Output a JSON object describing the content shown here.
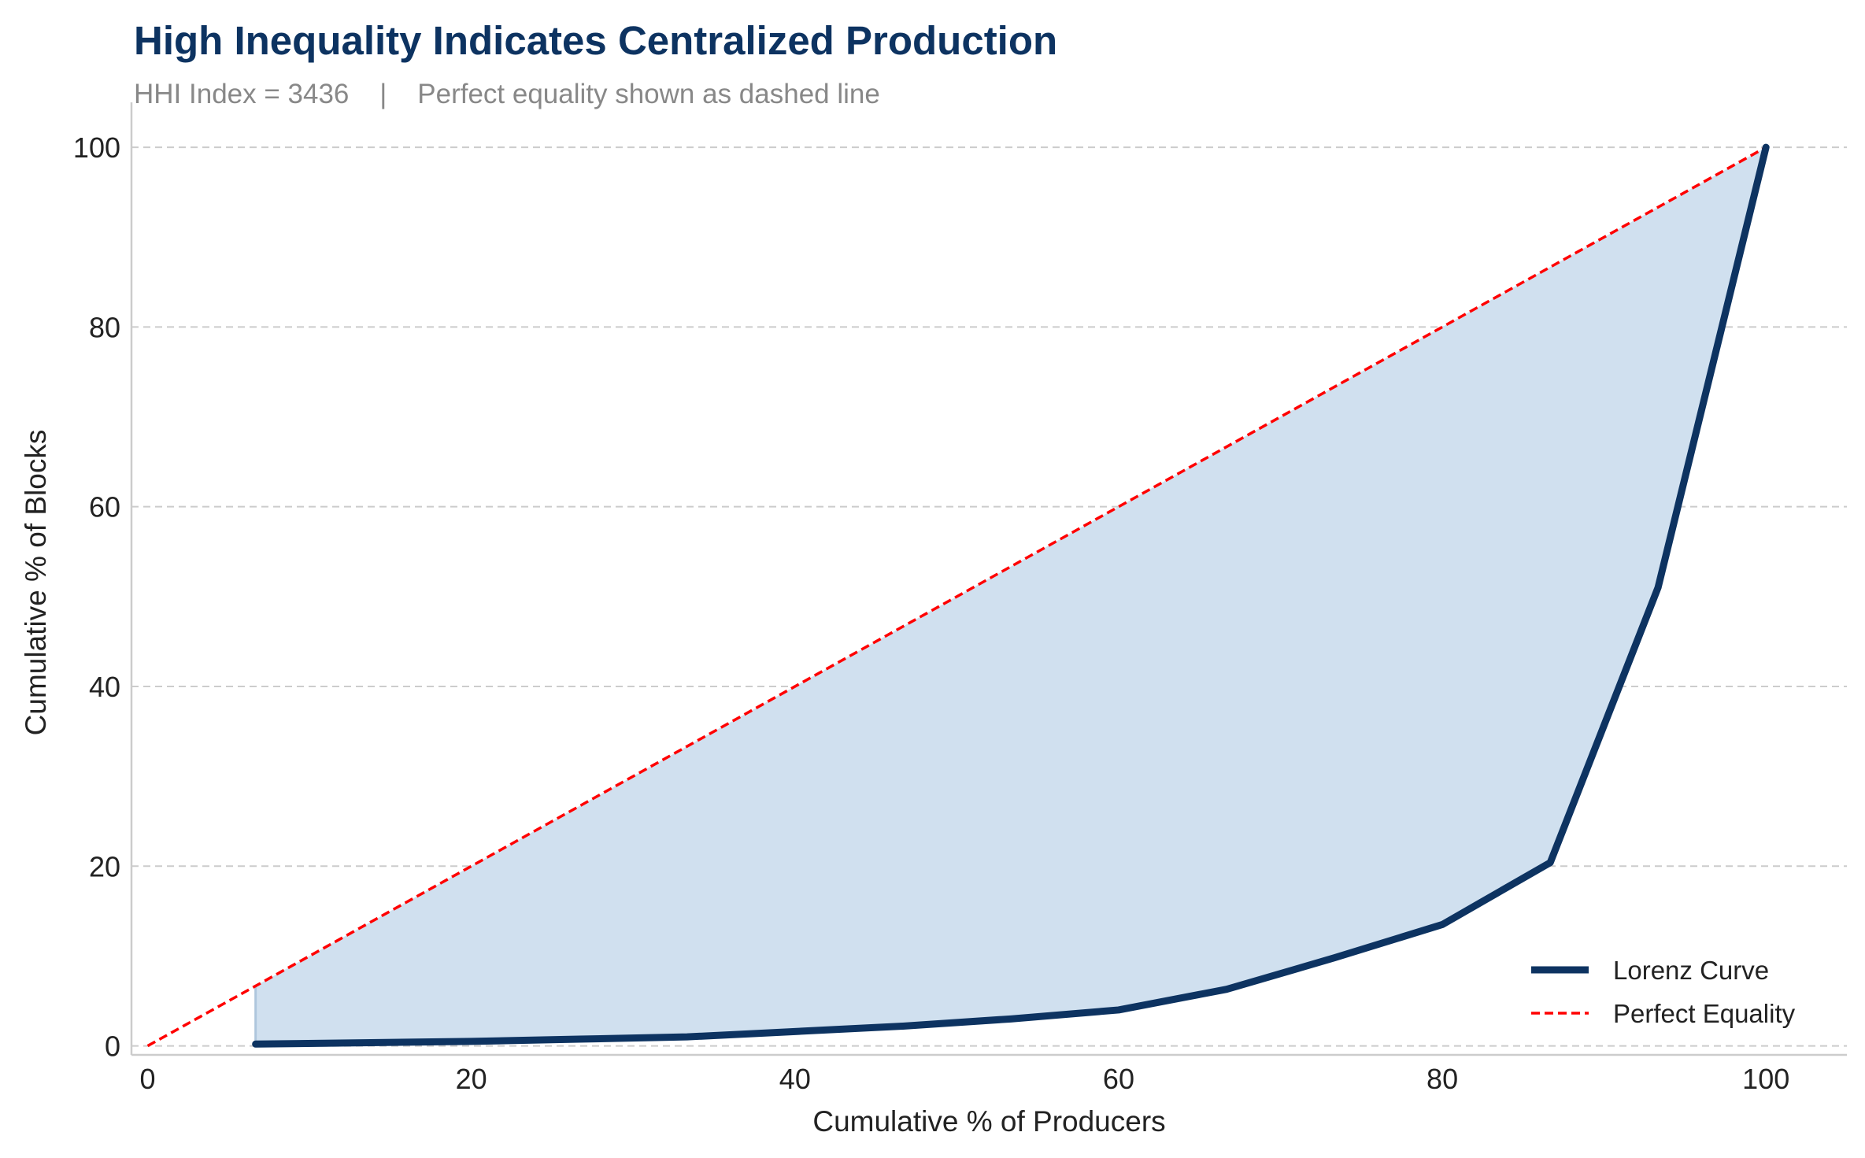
{
  "chart_data": {
    "type": "line",
    "title": "High Inequality Indicates Centralized Production",
    "subtitle": "HHI Index = 3436    |    Perfect equality shown as dashed line",
    "xlabel": "Cumulative % of Producers",
    "ylabel": "Cumulative % of Blocks",
    "xlim": [
      -1,
      105
    ],
    "ylim": [
      -1,
      105
    ],
    "xticks": [
      0,
      20,
      40,
      60,
      80,
      100
    ],
    "yticks": [
      0,
      20,
      40,
      60,
      80,
      100
    ],
    "grid": "y-dashed",
    "legend_position": "bottom-right",
    "series": [
      {
        "name": "Lorenz Curve",
        "color": "#0d3361",
        "style": "solid",
        "fill_to_equality": true,
        "fill_color": "#d0e0ef",
        "x": [
          6.67,
          13.33,
          20.0,
          26.67,
          33.33,
          40.0,
          46.67,
          53.33,
          60.0,
          66.67,
          73.33,
          80.0,
          86.67,
          93.33,
          100.0
        ],
        "y": [
          0.2,
          0.35,
          0.5,
          0.75,
          1.0,
          1.6,
          2.2,
          3.0,
          4.0,
          6.3,
          9.8,
          13.5,
          20.4,
          51.0,
          100.0
        ]
      },
      {
        "name": "Perfect Equality",
        "color": "#ff0000",
        "style": "dashed",
        "x": [
          0,
          100
        ],
        "y": [
          0,
          100
        ]
      }
    ]
  }
}
